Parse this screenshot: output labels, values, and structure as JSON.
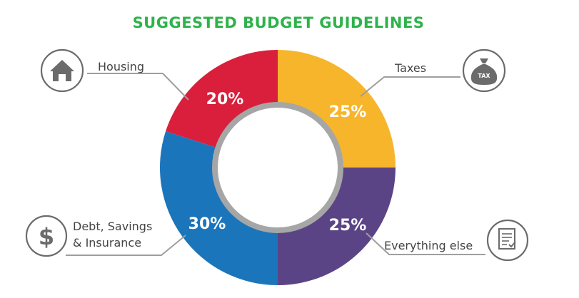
{
  "chart_data": {
    "type": "pie",
    "title": "SUGGESTED BUDGET GUIDELINES",
    "categories": [
      "Taxes",
      "Everything else",
      "Debt, Savings & Insurance",
      "Housing"
    ],
    "values": [
      25,
      25,
      30,
      20
    ],
    "value_labels": [
      "25%",
      "25%",
      "30%",
      "20%"
    ],
    "colors": [
      "#F7B52C",
      "#5B4486",
      "#1B75BB",
      "#D91F3C"
    ],
    "donut": true,
    "legend": "none",
    "grid": false,
    "start": "top, clockwise"
  },
  "colors": {
    "title": "#2DB34A",
    "ring": "#A6A6A6",
    "icon": "#6B6B6B",
    "leader": "#9E9E9E",
    "text": "#444444"
  },
  "labels": {
    "housing": "Housing",
    "taxes": "Taxes",
    "debt_line1": "Debt, Savings",
    "debt_line2": "& Insurance",
    "everything": "Everything else",
    "tax_bag": "TAX",
    "dollar": "$"
  },
  "icons": {
    "housing": "house-icon",
    "taxes": "tax-bag-icon",
    "debt": "dollar-icon",
    "everything": "document-checklist-icon"
  }
}
